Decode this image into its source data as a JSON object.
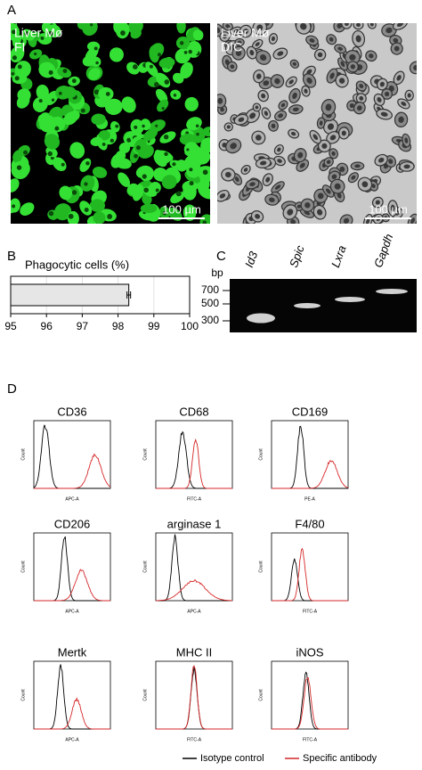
{
  "panel_labels": {
    "a": "A",
    "b": "B",
    "c": "C",
    "d": "D"
  },
  "panel_a": {
    "images": [
      {
        "label": "Liver Mø",
        "mode": "FI",
        "scale": "100 µm"
      },
      {
        "label": "Liver Mø",
        "mode": "DIC",
        "scale": "100 µm"
      }
    ]
  },
  "chart_data": {
    "type": "bar",
    "orientation": "horizontal",
    "title": "Phagocytic cells (%)",
    "values": [
      98.3
    ],
    "errors": [
      0.05
    ],
    "color": "#e6e6e6",
    "xlim": [
      95,
      100
    ],
    "xticks": [
      95,
      96,
      97,
      98,
      99,
      100
    ],
    "grid": true
  },
  "panel_c": {
    "bp_label": "bp",
    "ladder": [
      700,
      500,
      300
    ],
    "lanes": [
      "Id3",
      "Spic",
      "Lxra",
      "Gapdh"
    ]
  },
  "panel_d": {
    "histograms": [
      {
        "title": "CD36",
        "y_label": "Count",
        "x_label": "APC-A"
      },
      {
        "title": "CD68",
        "y_label": "Count",
        "x_label": "FITC-A"
      },
      {
        "title": "CD169",
        "y_label": "Count",
        "x_label": "PE-A"
      },
      {
        "title": "CD206",
        "y_label": "Count",
        "x_label": "APC-A"
      },
      {
        "title": "arginase 1",
        "y_label": "Count",
        "x_label": "APC-A"
      },
      {
        "title": "F4/80",
        "y_label": "Count",
        "x_label": "FITC-A"
      },
      {
        "title": "Mertk",
        "y_label": "Count",
        "x_label": "APC-A"
      },
      {
        "title": "MHC II",
        "y_label": "Count",
        "x_label": "FITC-A"
      },
      {
        "title": "iNOS",
        "y_label": "Count",
        "x_label": "FITC-A"
      }
    ],
    "legend": [
      {
        "name": "Isotype control",
        "color": "#000000"
      },
      {
        "name": "Specific antibody",
        "color": "#d62728"
      }
    ]
  }
}
